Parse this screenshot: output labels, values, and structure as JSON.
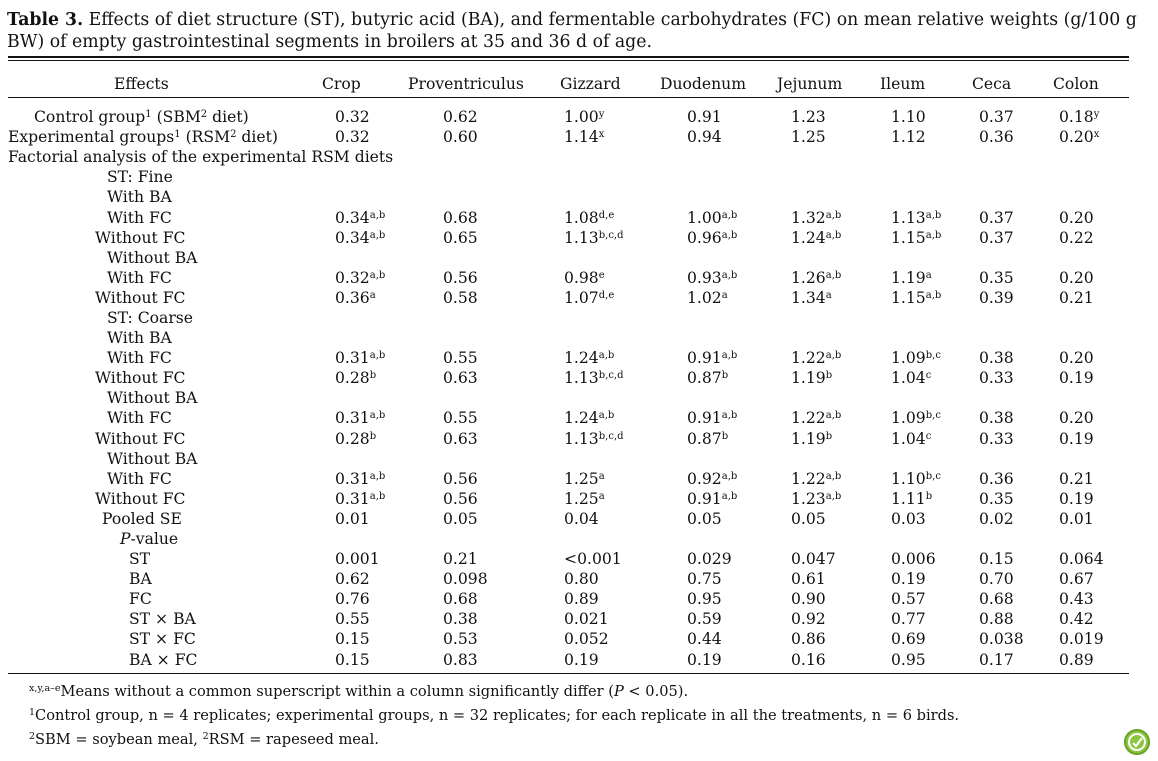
{
  "caption": {
    "label": "Table 3.",
    "text": "Effects of diet structure (ST), butyric acid (BA), and fermentable carbohydrates (FC) on mean relative weights (g/100 g BW) of empty gastrointestinal segments in broilers at 35 and 36 d of age."
  },
  "columns": [
    "Effects",
    "Crop",
    "Proventriculus",
    "Gizzard",
    "Duodenum",
    "Jejunum",
    "Ileum",
    "Ceca",
    "Colon"
  ],
  "rows": [
    {
      "indent": 2,
      "label": "Control group",
      "label_sups": [
        "1",
        "2"
      ],
      "label_parts": [
        "Control group",
        " (SBM",
        " diet)"
      ],
      "cells": [
        [
          "0.32",
          ""
        ],
        [
          "0.62",
          ""
        ],
        [
          "1.00",
          "y"
        ],
        [
          "0.91",
          ""
        ],
        [
          "1.23",
          ""
        ],
        [
          "1.10",
          ""
        ],
        [
          "0.37",
          ""
        ],
        [
          "0.18",
          "y"
        ]
      ]
    },
    {
      "indent": 0,
      "label": "Experimental groups",
      "label_sups": [
        "1",
        "2"
      ],
      "label_parts": [
        "Experimental groups",
        " (RSM",
        " diet)"
      ],
      "cells": [
        [
          "0.32",
          ""
        ],
        [
          "0.60",
          ""
        ],
        [
          "1.14",
          "x"
        ],
        [
          "0.94",
          ""
        ],
        [
          "1.25",
          ""
        ],
        [
          "1.12",
          ""
        ],
        [
          "0.36",
          ""
        ],
        [
          "0.20",
          "x"
        ]
      ]
    },
    {
      "indent": 0,
      "label": "Factorial analysis of the experimental RSM diets",
      "cells": []
    },
    {
      "indent": 1,
      "label": "ST: Fine",
      "cells": []
    },
    {
      "indent": 2,
      "label": "With BA",
      "cells": []
    },
    {
      "indent": 3,
      "label": "With FC",
      "cells": [
        [
          "0.34",
          "a,b"
        ],
        [
          "0.68",
          ""
        ],
        [
          "1.08",
          "d,e"
        ],
        [
          "1.00",
          "a,b"
        ],
        [
          "1.32",
          "a,b"
        ],
        [
          "1.13",
          "a,b"
        ],
        [
          "0.37",
          ""
        ],
        [
          "0.20",
          ""
        ]
      ]
    },
    {
      "indent": 4,
      "label": "Without FC",
      "cells": [
        [
          "0.34",
          "a,b"
        ],
        [
          "0.65",
          ""
        ],
        [
          "1.13",
          "b,c,d"
        ],
        [
          "0.96",
          "a,b"
        ],
        [
          "1.24",
          "a,b"
        ],
        [
          "1.15",
          "a,b"
        ],
        [
          "0.37",
          ""
        ],
        [
          "0.22",
          ""
        ]
      ]
    },
    {
      "indent": 2,
      "label": "Without BA",
      "cells": []
    },
    {
      "indent": 3,
      "label": "With FC",
      "cells": [
        [
          "0.32",
          "a,b"
        ],
        [
          "0.56",
          ""
        ],
        [
          "0.98",
          "e"
        ],
        [
          "0.93",
          "a,b"
        ],
        [
          "1.26",
          "a,b"
        ],
        [
          "1.19",
          "a"
        ],
        [
          "0.35",
          ""
        ],
        [
          "0.20",
          ""
        ]
      ]
    },
    {
      "indent": 4,
      "label": "Without FC",
      "cells": [
        [
          "0.36",
          "a"
        ],
        [
          "0.58",
          ""
        ],
        [
          "1.07",
          "d,e"
        ],
        [
          "1.02",
          "a"
        ],
        [
          "1.34",
          "a"
        ],
        [
          "1.15",
          "a,b"
        ],
        [
          "0.39",
          ""
        ],
        [
          "0.21",
          ""
        ]
      ]
    },
    {
      "indent": 1,
      "label": "ST: Coarse",
      "cells": []
    },
    {
      "indent": 2,
      "label": "With BA",
      "cells": []
    },
    {
      "indent": 3,
      "label": "With FC",
      "cells": [
        [
          "0.31",
          "a,b"
        ],
        [
          "0.55",
          ""
        ],
        [
          "1.24",
          "a,b"
        ],
        [
          "0.91",
          "a,b"
        ],
        [
          "1.22",
          "a,b"
        ],
        [
          "1.09",
          "b,c"
        ],
        [
          "0.38",
          ""
        ],
        [
          "0.20",
          ""
        ]
      ]
    },
    {
      "indent": 4,
      "label": "Without FC",
      "cells": [
        [
          "0.28",
          "b"
        ],
        [
          "0.63",
          ""
        ],
        [
          "1.13",
          "b,c,d"
        ],
        [
          "0.87",
          "b"
        ],
        [
          "1.19",
          "b"
        ],
        [
          "1.04",
          "c"
        ],
        [
          "0.33",
          ""
        ],
        [
          "0.19",
          ""
        ]
      ]
    },
    {
      "indent": 2,
      "label": "Without BA",
      "cells": []
    },
    {
      "indent": 3,
      "label": "With FC",
      "cells": [
        [
          "0.31",
          "a,b"
        ],
        [
          "0.55",
          ""
        ],
        [
          "1.24",
          "a,b"
        ],
        [
          "0.91",
          "a,b"
        ],
        [
          "1.22",
          "a,b"
        ],
        [
          "1.09",
          "b,c"
        ],
        [
          "0.38",
          ""
        ],
        [
          "0.20",
          ""
        ]
      ]
    },
    {
      "indent": 4,
      "label": "Without FC",
      "cells": [
        [
          "0.28",
          "b"
        ],
        [
          "0.63",
          ""
        ],
        [
          "1.13",
          "b,c,d"
        ],
        [
          "0.87",
          "b"
        ],
        [
          "1.19",
          "b"
        ],
        [
          "1.04",
          "c"
        ],
        [
          "0.33",
          ""
        ],
        [
          "0.19",
          ""
        ]
      ]
    },
    {
      "indent": 2,
      "label": "Without BA",
      "cells": []
    },
    {
      "indent": 3,
      "label": "With FC",
      "cells": [
        [
          "0.31",
          "a,b"
        ],
        [
          "0.56",
          ""
        ],
        [
          "1.25",
          "a"
        ],
        [
          "0.92",
          "a,b"
        ],
        [
          "1.22",
          "a,b"
        ],
        [
          "1.10",
          "b,c"
        ],
        [
          "0.36",
          ""
        ],
        [
          "0.21",
          ""
        ]
      ]
    },
    {
      "indent": 4,
      "label": "Without FC",
      "cells": [
        [
          "0.31",
          "a,b"
        ],
        [
          "0.56",
          ""
        ],
        [
          "1.25",
          "a"
        ],
        [
          "0.91",
          "a,b"
        ],
        [
          "1.23",
          "a,b"
        ],
        [
          "1.11",
          "b"
        ],
        [
          "0.35",
          ""
        ],
        [
          "0.19",
          ""
        ]
      ]
    },
    {
      "indent": 5,
      "label": "Pooled SE",
      "cells": [
        [
          "0.01",
          ""
        ],
        [
          "0.05",
          ""
        ],
        [
          "0.04",
          ""
        ],
        [
          "0.05",
          ""
        ],
        [
          "0.05",
          ""
        ],
        [
          "0.03",
          ""
        ],
        [
          "0.02",
          ""
        ],
        [
          "0.01",
          ""
        ]
      ]
    },
    {
      "indent": 6,
      "label": "P-value",
      "italic_prefix": "P",
      "cells": []
    },
    {
      "indent": 7,
      "label": "ST",
      "cells": [
        [
          "0.001",
          ""
        ],
        [
          "0.21",
          ""
        ],
        [
          "<0.001",
          ""
        ],
        [
          "0.029",
          ""
        ],
        [
          "0.047",
          ""
        ],
        [
          "0.006",
          ""
        ],
        [
          "0.15",
          ""
        ],
        [
          "0.064",
          ""
        ]
      ]
    },
    {
      "indent": 7,
      "label": "BA",
      "cells": [
        [
          "0.62",
          ""
        ],
        [
          "0.098",
          ""
        ],
        [
          "0.80",
          ""
        ],
        [
          "0.75",
          ""
        ],
        [
          "0.61",
          ""
        ],
        [
          "0.19",
          ""
        ],
        [
          "0.70",
          ""
        ],
        [
          "0.67",
          ""
        ]
      ]
    },
    {
      "indent": 7,
      "label": "FC",
      "cells": [
        [
          "0.76",
          ""
        ],
        [
          "0.68",
          ""
        ],
        [
          "0.89",
          ""
        ],
        [
          "0.95",
          ""
        ],
        [
          "0.90",
          ""
        ],
        [
          "0.57",
          ""
        ],
        [
          "0.68",
          ""
        ],
        [
          "0.43",
          ""
        ]
      ]
    },
    {
      "indent": 7,
      "label": "ST × BA",
      "cells": [
        [
          "0.55",
          ""
        ],
        [
          "0.38",
          ""
        ],
        [
          "0.021",
          ""
        ],
        [
          "0.59",
          ""
        ],
        [
          "0.92",
          ""
        ],
        [
          "0.77",
          ""
        ],
        [
          "0.88",
          ""
        ],
        [
          "0.42",
          ""
        ]
      ]
    },
    {
      "indent": 7,
      "label": "ST × FC",
      "cells": [
        [
          "0.15",
          ""
        ],
        [
          "0.53",
          ""
        ],
        [
          "0.052",
          ""
        ],
        [
          "0.44",
          ""
        ],
        [
          "0.86",
          ""
        ],
        [
          "0.69",
          ""
        ],
        [
          "0.038",
          ""
        ],
        [
          "0.019",
          ""
        ]
      ]
    },
    {
      "indent": 7,
      "label": "BA × FC",
      "cells": [
        [
          "0.15",
          ""
        ],
        [
          "0.83",
          ""
        ],
        [
          "0.19",
          ""
        ],
        [
          "0.19",
          ""
        ],
        [
          "0.16",
          ""
        ],
        [
          "0.95",
          ""
        ],
        [
          "0.17",
          ""
        ],
        [
          "0.89",
          ""
        ]
      ]
    }
  ],
  "footnotes": [
    {
      "sup": "x,y,a–e",
      "text": "Means without a common superscript within a column significantly differ (P < 0.05)."
    },
    {
      "sup": "1",
      "text": "Control group, n = 4 replicates; experimental groups, n = 32 replicates; for each replicate in all the treatments, n = 6 birds."
    },
    {
      "sup": "2",
      "text": "SBM = soybean meal, ",
      "sup2": "2",
      "text2": "RSM = rapeseed meal."
    }
  ],
  "badge_icon": "green-leaf-badge-icon",
  "badge_color": "#8cc63f"
}
